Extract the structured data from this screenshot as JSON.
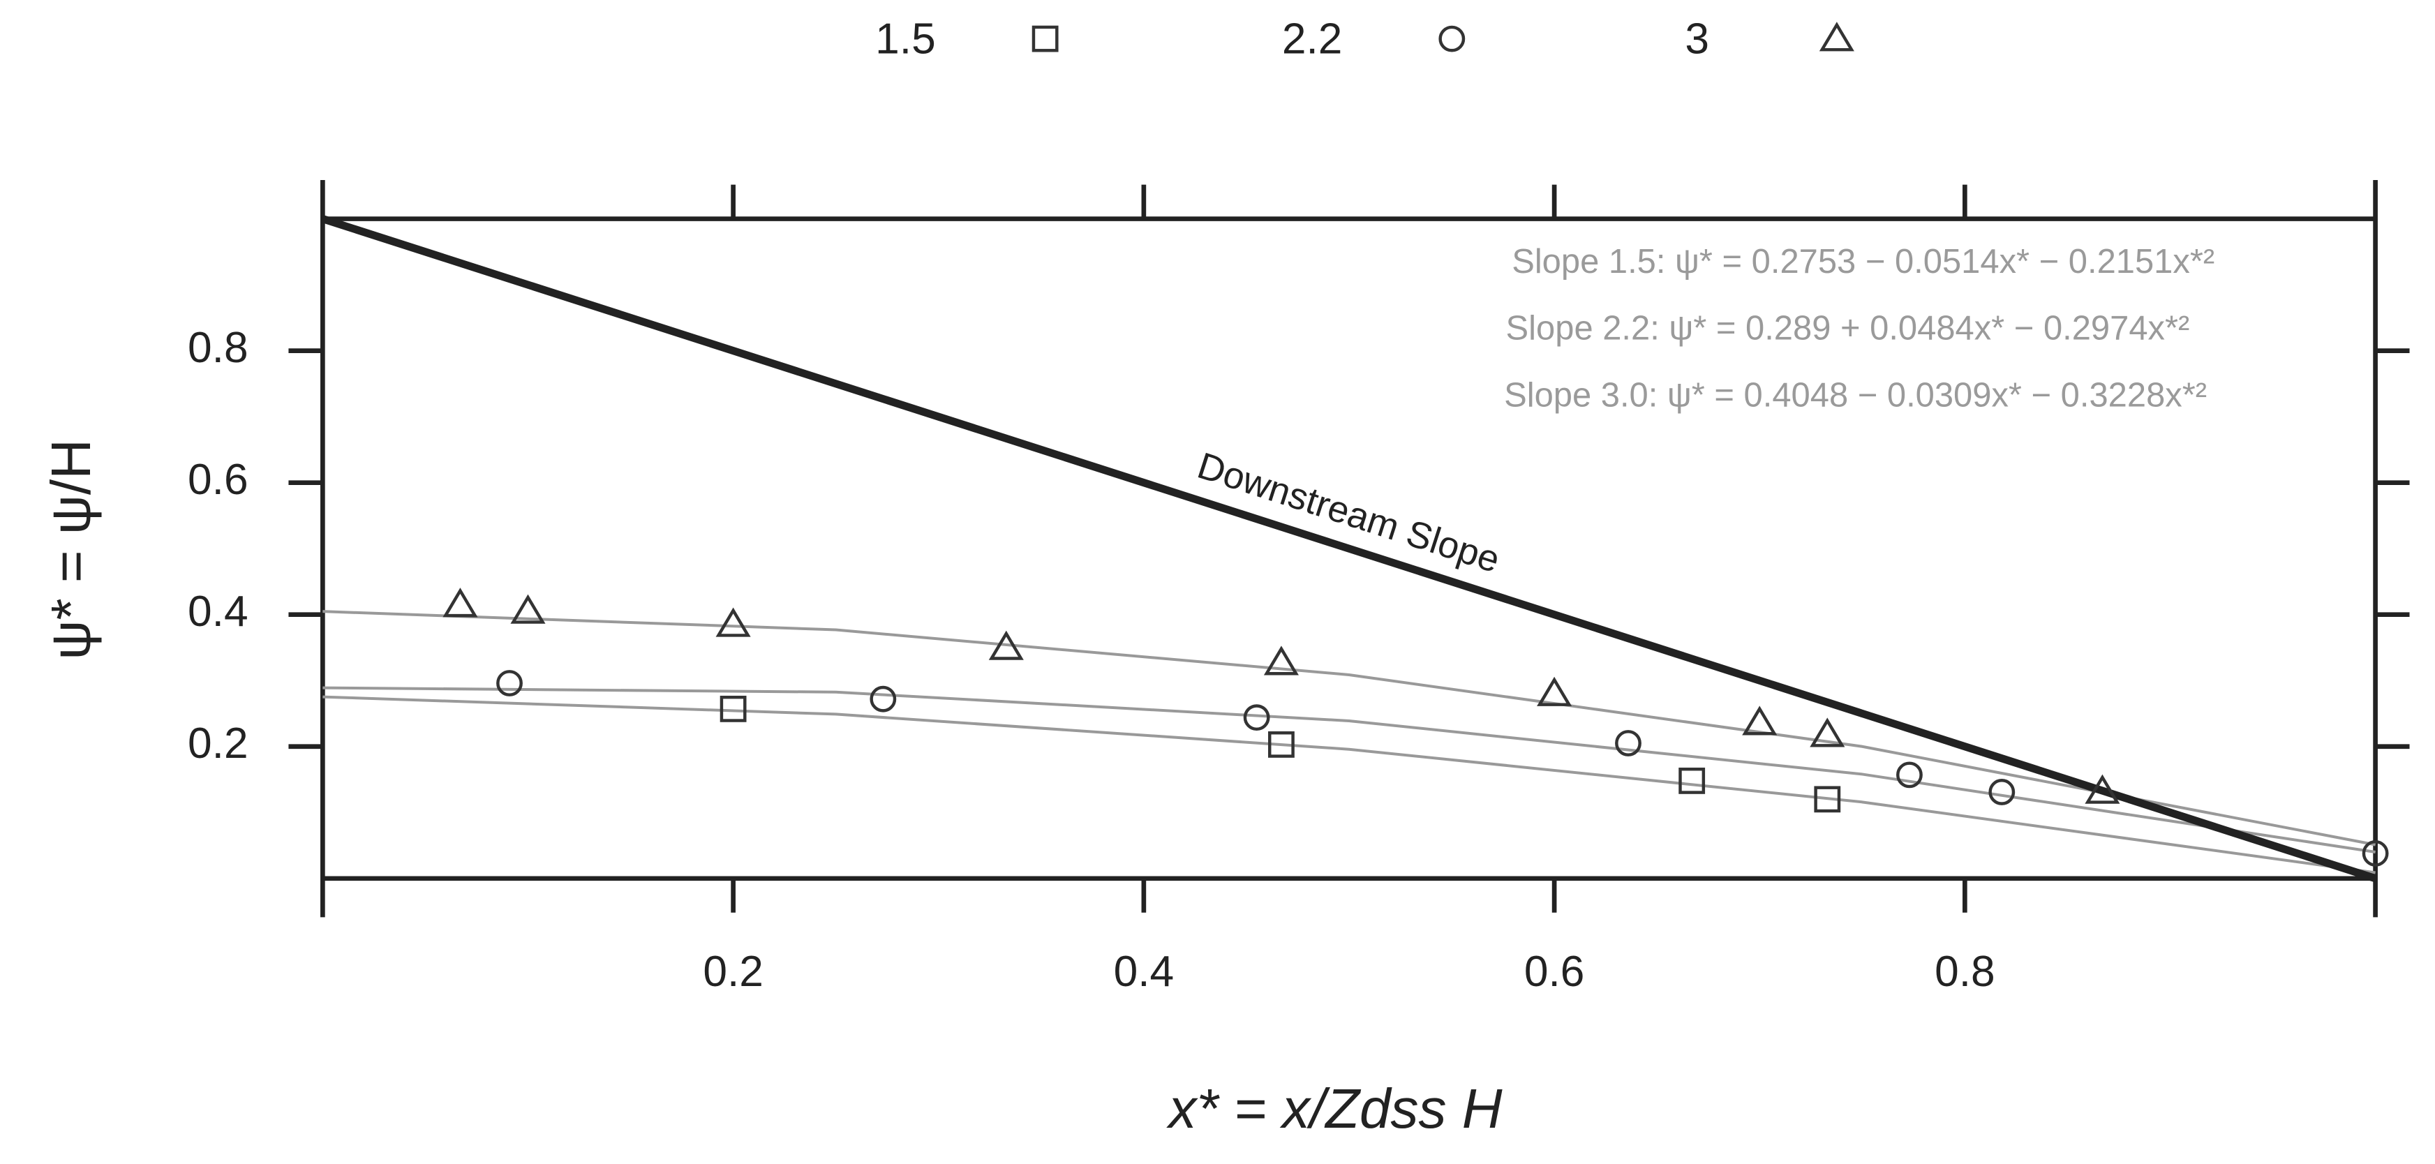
{
  "chart_data": {
    "type": "scatter",
    "xlabel": "x* = x/Zdss H",
    "ylabel": "ψ* = ψ/H",
    "xlim": [
      0,
      1
    ],
    "ylim": [
      0,
      1
    ],
    "xticks": [
      0.2,
      0.4,
      0.6,
      0.8
    ],
    "yticks": [
      0.2,
      0.4,
      0.6,
      0.8
    ],
    "series": [
      {
        "name": "1.5",
        "marker": "square",
        "color": "#333333",
        "x": [
          0.2,
          0.467,
          0.667,
          0.733
        ],
        "values": [
          0.257,
          0.203,
          0.148,
          0.12
        ]
      },
      {
        "name": "2.2",
        "marker": "circle",
        "color": "#333333",
        "x": [
          0.091,
          0.273,
          0.455,
          0.636,
          0.773,
          0.818,
          1.0
        ],
        "values": [
          0.296,
          0.272,
          0.244,
          0.205,
          0.157,
          0.131,
          0.038
        ]
      },
      {
        "name": "3",
        "marker": "triangle",
        "color": "#333333",
        "x": [
          0.067,
          0.1,
          0.2,
          0.333,
          0.467,
          0.6,
          0.7,
          0.733,
          0.867
        ],
        "values": [
          0.415,
          0.405,
          0.385,
          0.35,
          0.327,
          0.28,
          0.236,
          0.218,
          0.132
        ]
      }
    ],
    "fits": [
      {
        "color": "#999999",
        "x": [
          0,
          0.25,
          0.5,
          0.75,
          1
        ],
        "values": [
          0.2753,
          0.249,
          0.1958,
          0.1158,
          0.0088
        ]
      },
      {
        "color": "#999999",
        "x": [
          0,
          0.25,
          0.5,
          0.75,
          1
        ],
        "values": [
          0.289,
          0.2825,
          0.2389,
          0.158,
          0.04
        ]
      },
      {
        "color": "#999999",
        "x": [
          0,
          0.25,
          0.5,
          0.75,
          1
        ],
        "values": [
          0.4048,
          0.3769,
          0.3087,
          0.2,
          0.0511
        ]
      }
    ],
    "slope_line": {
      "label": "Downstream Slope",
      "color": "#222222",
      "x": [
        0,
        1
      ],
      "values": [
        1,
        0
      ]
    },
    "annotations": [
      "Slope 1.5: ψ* = 0.2753 − 0.0514x* − 0.2151x*²",
      "Slope 2.2: ψ* = 0.289 + 0.0484x* − 0.2974x*²",
      "Slope 3.0: ψ* = 0.4048 − 0.0309x* − 0.3228x*²"
    ]
  }
}
